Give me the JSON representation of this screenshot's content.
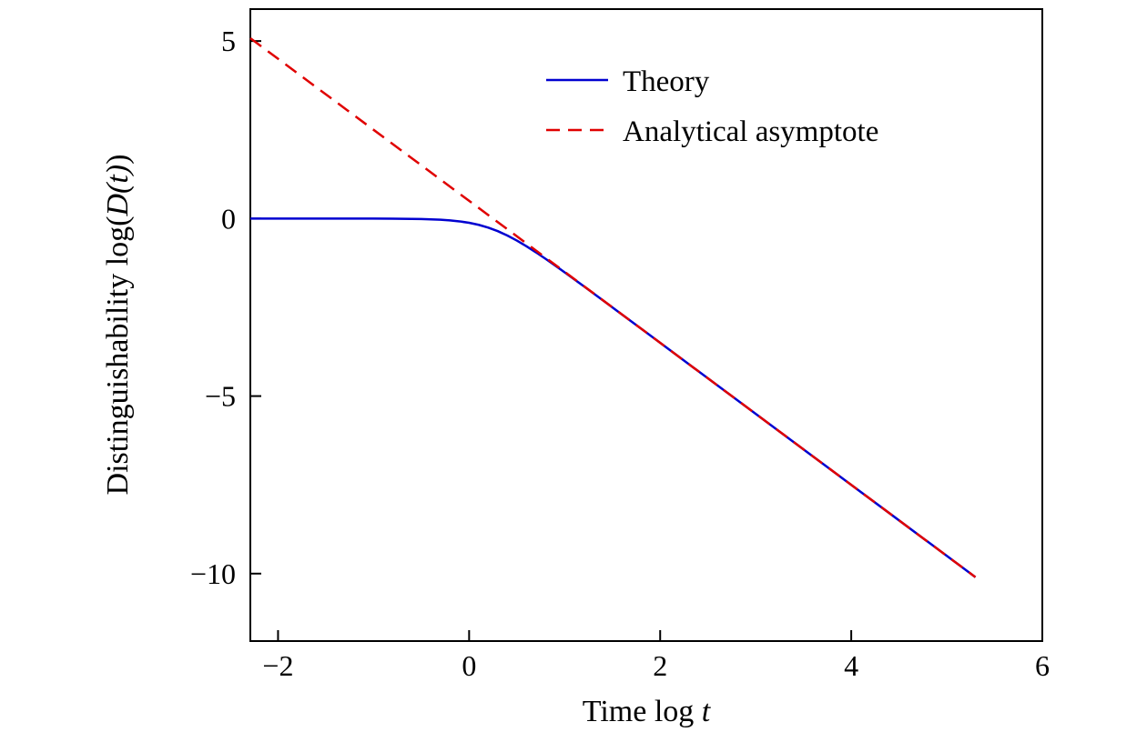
{
  "chart_data": {
    "type": "line",
    "title": "",
    "xlabel": "Time log t",
    "ylabel": "Distinguishability log(D(t))",
    "xlabel_parts": [
      "Time log ",
      "t"
    ],
    "ylabel_parts": [
      "Distinguishability log(",
      "D(t)",
      ")"
    ],
    "xlim": [
      -2.29,
      6.0
    ],
    "ylim": [
      -11.9,
      5.9
    ],
    "grid": false,
    "legend_position": "upper center",
    "frame_color": "#000000",
    "x_ticks": [
      {
        "v": -2,
        "label": "−2"
      },
      {
        "v": 0,
        "label": "0"
      },
      {
        "v": 2,
        "label": "2"
      },
      {
        "v": 4,
        "label": "4"
      },
      {
        "v": 6,
        "label": "6"
      }
    ],
    "y_ticks": [
      {
        "v": 5,
        "label": "5"
      },
      {
        "v": 0,
        "label": "0"
      },
      {
        "v": -5,
        "label": "−5"
      },
      {
        "v": -10,
        "label": "−10"
      }
    ],
    "series": [
      {
        "name": "Theory",
        "color": "#0000d0",
        "style": "solid",
        "points": [
          [
            -2.29,
            0.0
          ],
          [
            -2.0,
            -0.0001
          ],
          [
            -1.8,
            -0.0001
          ],
          [
            -1.6,
            -0.0002
          ],
          [
            -1.4,
            -0.0005
          ],
          [
            -1.2,
            -0.0009
          ],
          [
            -1.0,
            -0.0014
          ],
          [
            -0.8,
            -0.0034
          ],
          [
            -0.6,
            -0.0086
          ],
          [
            -0.5,
            -0.0135
          ],
          [
            -0.4,
            -0.0212
          ],
          [
            -0.3,
            -0.0332
          ],
          [
            -0.2,
            -0.0515
          ],
          [
            -0.1,
            -0.079
          ],
          [
            0.0,
            -0.1193
          ],
          [
            0.1,
            -0.1764
          ],
          [
            0.2,
            -0.2539
          ],
          [
            0.3,
            -0.3539
          ],
          [
            0.4,
            -0.4764
          ],
          [
            0.5,
            -0.6193
          ],
          [
            0.6,
            -0.779
          ],
          [
            0.7,
            -0.9515
          ],
          [
            0.8,
            -1.1332
          ],
          [
            0.9,
            -1.3212
          ],
          [
            1.0,
            -1.5135
          ],
          [
            1.2,
            -1.9054
          ],
          [
            1.4,
            -2.3022
          ],
          [
            1.6,
            -2.7009
          ],
          [
            1.8,
            -3.1003
          ],
          [
            2.0,
            -3.5001
          ],
          [
            2.4,
            -4.3
          ],
          [
            2.8,
            -5.1
          ],
          [
            3.2,
            -5.9
          ],
          [
            3.6,
            -6.7
          ],
          [
            4.0,
            -7.5
          ],
          [
            4.4,
            -8.3
          ],
          [
            4.8,
            -9.1
          ],
          [
            5.3,
            -10.1
          ]
        ]
      },
      {
        "name": "Analytical asymptote",
        "color": "#e00000",
        "style": "dashed",
        "points": [
          [
            -2.29,
            5.08
          ],
          [
            5.3,
            -10.1
          ]
        ]
      }
    ]
  }
}
